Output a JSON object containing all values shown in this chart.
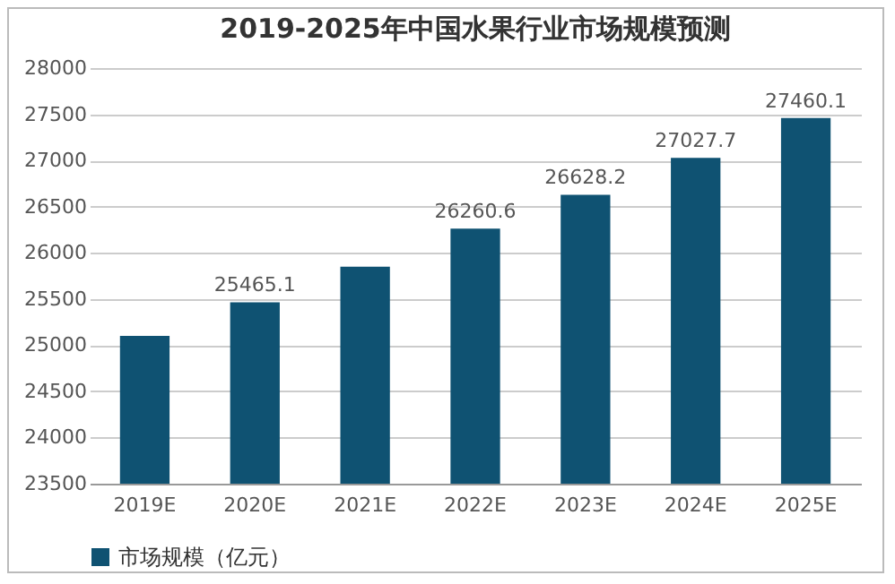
{
  "chart_data": {
    "type": "bar",
    "title": "2019-2025年中国水果行业市场规模预测",
    "categories": [
      "2019E",
      "2020E",
      "2021E",
      "2022E",
      "2023E",
      "2024E",
      "2025E"
    ],
    "series": [
      {
        "name": "市场规模（亿元）",
        "color": "#0f5272",
        "values": [
          25100,
          25465.1,
          25850,
          26260.6,
          26628.2,
          27027.7,
          27460.1
        ],
        "value_labels": [
          null,
          "25465.1",
          null,
          "26260.6",
          "26628.2",
          "27027.7",
          "27460.1"
        ]
      }
    ],
    "ylim": [
      23500,
      28000
    ],
    "yticks": [
      23500,
      24000,
      24500,
      25000,
      25500,
      26000,
      26500,
      27000,
      27500,
      28000
    ],
    "grid": "y",
    "legend": "bottom"
  }
}
